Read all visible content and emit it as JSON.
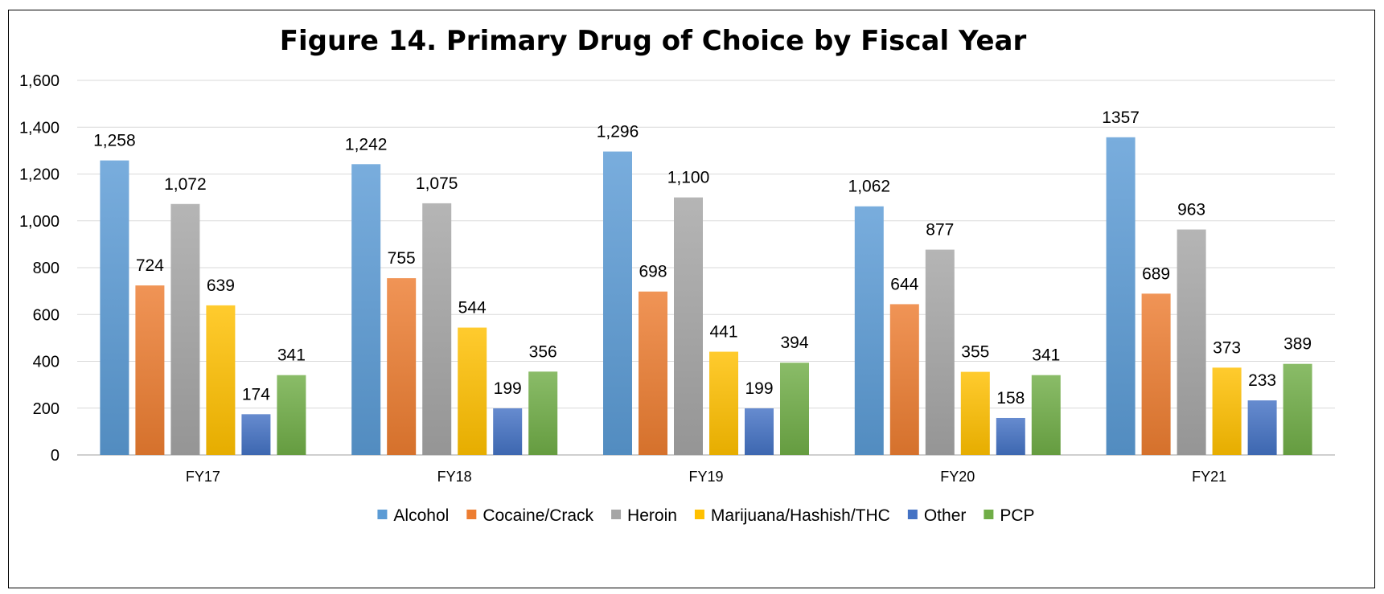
{
  "chart_data": {
    "type": "bar",
    "title": "Figure 14. Primary Drug of Choice by Fiscal Year",
    "xlabel": "",
    "ylabel": "",
    "ylim": [
      0,
      1600
    ],
    "y_ticks": [
      "0",
      "200",
      "400",
      "600",
      "800",
      "1,000",
      "1,200",
      "1,400",
      "1,600"
    ],
    "y_tick_values": [
      0,
      200,
      400,
      600,
      800,
      1000,
      1200,
      1400,
      1600
    ],
    "grid": true,
    "legend_position": "bottom",
    "categories": [
      "FY17",
      "FY18",
      "FY19",
      "FY20",
      "FY21"
    ],
    "series": [
      {
        "name": "Alcohol",
        "color": "#5B9BD5",
        "values": [
          1258,
          1242,
          1296,
          1062,
          1357
        ],
        "labels": [
          "1,258",
          "1,242",
          "1,296",
          "1,062",
          "1357"
        ]
      },
      {
        "name": "Cocaine/Crack",
        "color": "#ED7D31",
        "values": [
          724,
          755,
          698,
          644,
          689
        ],
        "labels": [
          "724",
          "755",
          "698",
          "644",
          "689"
        ]
      },
      {
        "name": "Heroin",
        "color": "#A5A5A5",
        "values": [
          1072,
          1075,
          1100,
          877,
          963
        ],
        "labels": [
          "1,072",
          "1,075",
          "1,100",
          "877",
          "963"
        ]
      },
      {
        "name": "Marijuana/Hashish/THC",
        "color": "#FFC000",
        "values": [
          639,
          544,
          441,
          355,
          373
        ],
        "labels": [
          "639",
          "544",
          "441",
          "355",
          "373"
        ]
      },
      {
        "name": "Other",
        "color": "#4472C4",
        "values": [
          174,
          199,
          199,
          158,
          233
        ],
        "labels": [
          "174",
          "199",
          "199",
          "158",
          "233"
        ]
      },
      {
        "name": "PCP",
        "color": "#70AD47",
        "values": [
          341,
          356,
          394,
          341,
          389
        ],
        "labels": [
          "341",
          "356",
          "394",
          "341",
          "389"
        ]
      }
    ]
  }
}
